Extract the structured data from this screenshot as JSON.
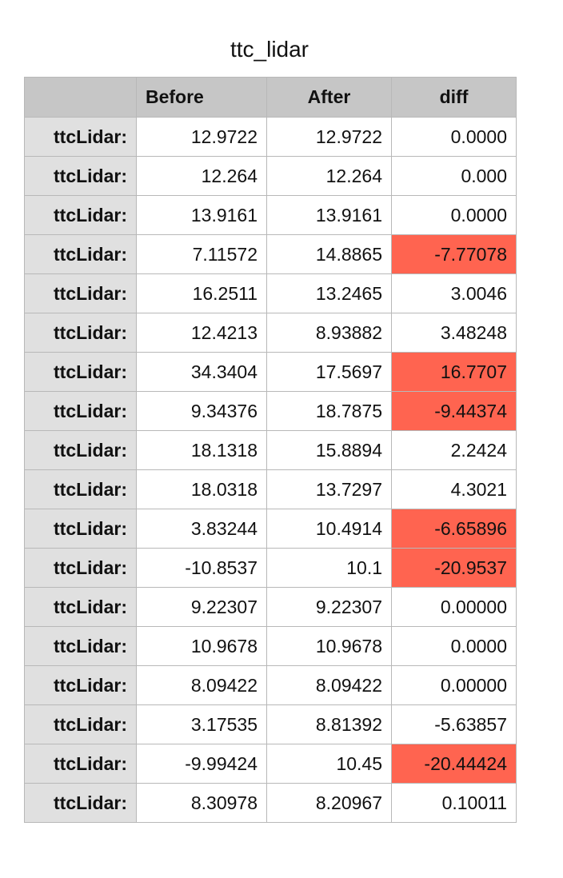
{
  "title": "ttc_lidar",
  "colors": {
    "header_bg": "#c6c6c6",
    "row_header_bg": "#e0e0e0",
    "highlight": "#ff6450",
    "grid": "#b8b8b8"
  },
  "table": {
    "columns": [
      "",
      "Before",
      "After",
      "diff"
    ],
    "rows": [
      {
        "label": "ttcLidar:",
        "before": "12.9722",
        "after": "12.9722",
        "diff": "0.0000",
        "highlight": false
      },
      {
        "label": "ttcLidar:",
        "before": "12.264",
        "after": "12.264",
        "diff": "0.000",
        "highlight": false
      },
      {
        "label": "ttcLidar:",
        "before": "13.9161",
        "after": "13.9161",
        "diff": "0.0000",
        "highlight": false
      },
      {
        "label": "ttcLidar:",
        "before": "7.11572",
        "after": "14.8865",
        "diff": "-7.77078",
        "highlight": true
      },
      {
        "label": "ttcLidar:",
        "before": "16.2511",
        "after": "13.2465",
        "diff": "3.0046",
        "highlight": false
      },
      {
        "label": "ttcLidar:",
        "before": "12.4213",
        "after": "8.93882",
        "diff": "3.48248",
        "highlight": false
      },
      {
        "label": "ttcLidar:",
        "before": "34.3404",
        "after": "17.5697",
        "diff": "16.7707",
        "highlight": true
      },
      {
        "label": "ttcLidar:",
        "before": "9.34376",
        "after": "18.7875",
        "diff": "-9.44374",
        "highlight": true
      },
      {
        "label": "ttcLidar:",
        "before": "18.1318",
        "after": "15.8894",
        "diff": "2.2424",
        "highlight": false
      },
      {
        "label": "ttcLidar:",
        "before": "18.0318",
        "after": "13.7297",
        "diff": "4.3021",
        "highlight": false
      },
      {
        "label": "ttcLidar:",
        "before": "3.83244",
        "after": "10.4914",
        "diff": "-6.65896",
        "highlight": true
      },
      {
        "label": "ttcLidar:",
        "before": "-10.8537",
        "after": "10.1",
        "diff": "-20.9537",
        "highlight": true
      },
      {
        "label": "ttcLidar:",
        "before": "9.22307",
        "after": "9.22307",
        "diff": "0.00000",
        "highlight": false
      },
      {
        "label": "ttcLidar:",
        "before": "10.9678",
        "after": "10.9678",
        "diff": "0.0000",
        "highlight": false
      },
      {
        "label": "ttcLidar:",
        "before": "8.09422",
        "after": "8.09422",
        "diff": "0.00000",
        "highlight": false
      },
      {
        "label": "ttcLidar:",
        "before": "3.17535",
        "after": "8.81392",
        "diff": "-5.63857",
        "highlight": false
      },
      {
        "label": "ttcLidar:",
        "before": "-9.99424",
        "after": "10.45",
        "diff": "-20.44424",
        "highlight": true
      },
      {
        "label": "ttcLidar:",
        "before": "8.30978",
        "after": "8.20967",
        "diff": "0.10011",
        "highlight": false
      }
    ]
  }
}
